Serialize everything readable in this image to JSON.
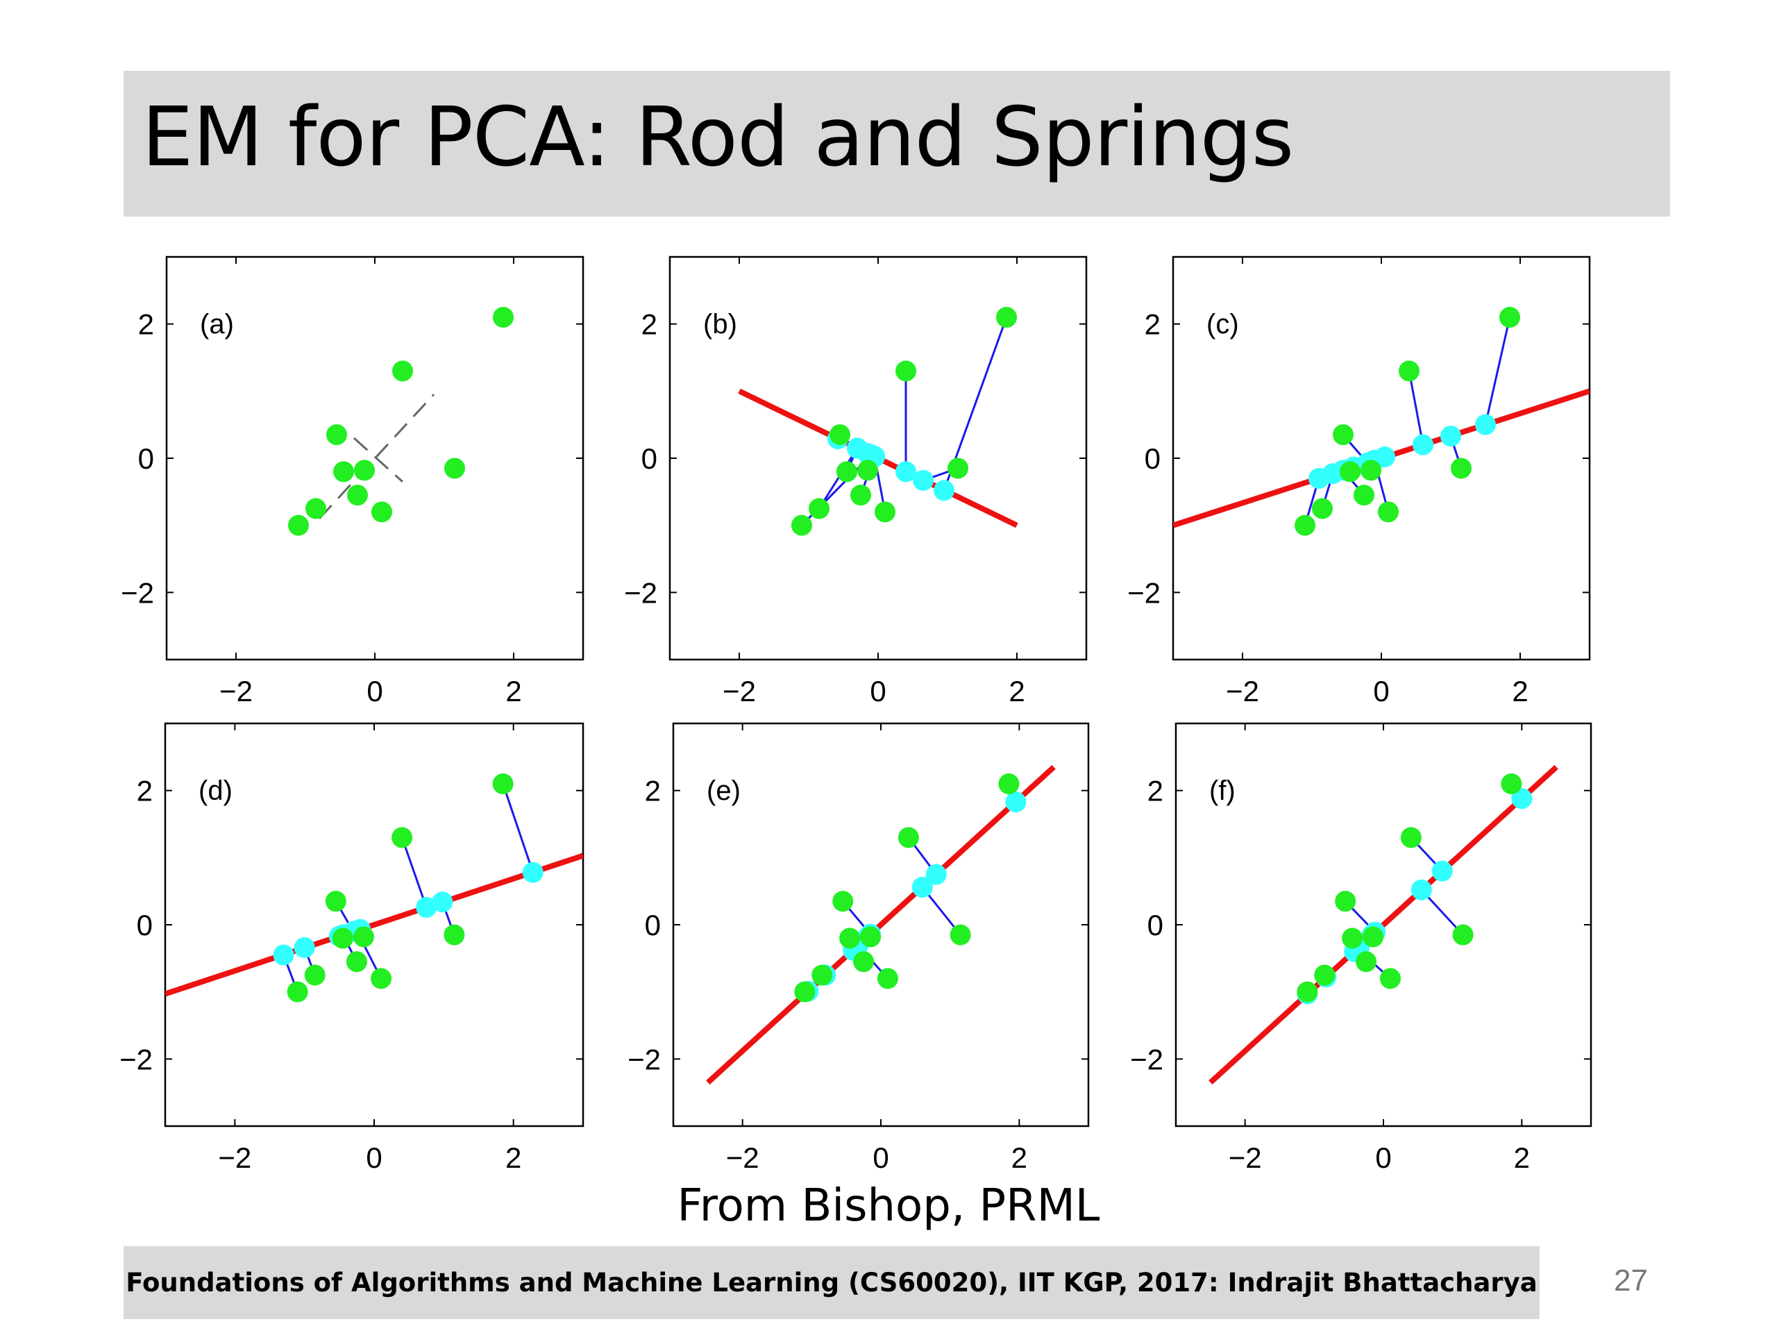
{
  "slide": {
    "title": "EM for PCA: Rod and Springs",
    "caption": "From Bishop, PRML",
    "footer": "Foundations of Algorithms and Machine Learning (CS60020), IIT KGP, 2017: Indrajit Bhattacharya",
    "page_number": "27"
  },
  "colors": {
    "data_point": "#22ee22",
    "projection": "#33ffff",
    "spring": "#1a1aee",
    "rod": "#ee1111",
    "dashed": "#666666"
  },
  "chart_data": [
    {
      "type": "scatter",
      "panel_label": "(a)",
      "xlim": [
        -3,
        3
      ],
      "ylim": [
        -3,
        3
      ],
      "xticks": [
        -2,
        0,
        2
      ],
      "yticks": [
        -2,
        0,
        2
      ],
      "points": [
        [
          1.85,
          2.1
        ],
        [
          0.4,
          1.3
        ],
        [
          -0.55,
          0.35
        ],
        [
          1.15,
          -0.15
        ],
        [
          -0.45,
          -0.2
        ],
        [
          -0.15,
          -0.18
        ],
        [
          -0.25,
          -0.55
        ],
        [
          0.1,
          -0.8
        ],
        [
          -0.85,
          -0.75
        ],
        [
          -1.1,
          -1.0
        ]
      ],
      "dashed_lines": [
        [
          [
            -0.8,
            -0.9
          ],
          [
            0.85,
            0.95
          ]
        ],
        [
          [
            -0.3,
            0.3
          ],
          [
            0.4,
            -0.35
          ]
        ]
      ]
    },
    {
      "type": "scatter",
      "panel_label": "(b)",
      "xlim": [
        -3,
        3
      ],
      "ylim": [
        -3,
        3
      ],
      "xticks": [
        -2,
        0,
        2
      ],
      "yticks": [
        -2,
        0,
        2
      ],
      "points": [
        [
          1.85,
          2.1
        ],
        [
          0.4,
          1.3
        ],
        [
          -0.55,
          0.35
        ],
        [
          1.15,
          -0.15
        ],
        [
          -0.45,
          -0.2
        ],
        [
          -0.15,
          -0.18
        ],
        [
          -0.25,
          -0.55
        ],
        [
          0.1,
          -0.8
        ],
        [
          -0.85,
          -0.75
        ],
        [
          -1.1,
          -1.0
        ]
      ],
      "rod": [
        [
          -2,
          1.0
        ],
        [
          2,
          -1.0
        ]
      ],
      "projections": [
        [
          0.95,
          -0.48
        ],
        [
          0.4,
          -0.2
        ],
        [
          -0.58,
          0.29
        ],
        [
          0.65,
          -0.33
        ],
        [
          -0.3,
          0.15
        ],
        [
          -0.15,
          0.07
        ],
        [
          -0.05,
          0.03
        ],
        [
          -0.05,
          0.02
        ],
        [
          -0.3,
          0.15
        ],
        [
          -0.1,
          0.05
        ]
      ]
    },
    {
      "type": "scatter",
      "panel_label": "(c)",
      "xlim": [
        -3,
        3
      ],
      "ylim": [
        -3,
        3
      ],
      "xticks": [
        -2,
        0,
        2
      ],
      "yticks": [
        -2,
        0,
        2
      ],
      "points": [
        [
          1.85,
          2.1
        ],
        [
          0.4,
          1.3
        ],
        [
          -0.55,
          0.35
        ],
        [
          1.15,
          -0.15
        ],
        [
          -0.45,
          -0.2
        ],
        [
          -0.15,
          -0.18
        ],
        [
          -0.25,
          -0.55
        ],
        [
          0.1,
          -0.8
        ],
        [
          -0.85,
          -0.75
        ],
        [
          -1.1,
          -1.0
        ]
      ],
      "rod": [
        [
          -3,
          -1.0
        ],
        [
          3,
          1.0
        ]
      ],
      "projections": [
        [
          1.5,
          0.5
        ],
        [
          0.6,
          0.2
        ],
        [
          -0.2,
          -0.07
        ],
        [
          1.0,
          0.33
        ],
        [
          -0.4,
          -0.13
        ],
        [
          0.05,
          0.02
        ],
        [
          -0.55,
          -0.18
        ],
        [
          -0.1,
          -0.03
        ],
        [
          -0.7,
          -0.23
        ],
        [
          -0.9,
          -0.3
        ]
      ]
    },
    {
      "type": "scatter",
      "panel_label": "(d)",
      "xlim": [
        -3,
        3
      ],
      "ylim": [
        -3,
        3
      ],
      "xticks": [
        -2,
        0,
        2
      ],
      "yticks": [
        -2,
        0,
        2
      ],
      "points": [
        [
          1.85,
          2.1
        ],
        [
          0.4,
          1.3
        ],
        [
          -0.55,
          0.35
        ],
        [
          1.15,
          -0.15
        ],
        [
          -0.45,
          -0.2
        ],
        [
          -0.15,
          -0.18
        ],
        [
          -0.25,
          -0.55
        ],
        [
          0.1,
          -0.8
        ],
        [
          -0.85,
          -0.75
        ],
        [
          -1.1,
          -1.0
        ]
      ],
      "rod": [
        [
          -3,
          -1.03
        ],
        [
          3,
          1.03
        ]
      ],
      "projections": [
        [
          2.28,
          0.78
        ],
        [
          0.75,
          0.26
        ],
        [
          -0.3,
          -0.1
        ],
        [
          0.98,
          0.34
        ],
        [
          -0.5,
          -0.17
        ],
        [
          -0.2,
          -0.07
        ],
        [
          -0.45,
          -0.15
        ],
        [
          -0.25,
          -0.09
        ],
        [
          -1.0,
          -0.34
        ],
        [
          -1.3,
          -0.45
        ]
      ]
    },
    {
      "type": "scatter",
      "panel_label": "(e)",
      "xlim": [
        -3,
        3
      ],
      "ylim": [
        -3,
        3
      ],
      "xticks": [
        -2,
        0,
        2
      ],
      "yticks": [
        -2,
        0,
        2
      ],
      "points": [
        [
          1.85,
          2.1
        ],
        [
          0.4,
          1.3
        ],
        [
          -0.55,
          0.35
        ],
        [
          1.15,
          -0.15
        ],
        [
          -0.45,
          -0.2
        ],
        [
          -0.15,
          -0.18
        ],
        [
          -0.25,
          -0.55
        ],
        [
          0.1,
          -0.8
        ],
        [
          -0.85,
          -0.75
        ],
        [
          -1.1,
          -1.0
        ]
      ],
      "rod": [
        [
          -2.5,
          -2.35
        ],
        [
          2.5,
          2.35
        ]
      ],
      "projections": [
        [
          1.95,
          1.83
        ],
        [
          0.8,
          0.75
        ],
        [
          -0.15,
          -0.14
        ],
        [
          0.6,
          0.56
        ],
        [
          -0.35,
          -0.33
        ],
        [
          -0.18,
          -0.17
        ],
        [
          -0.4,
          -0.38
        ],
        [
          -0.33,
          -0.31
        ],
        [
          -0.8,
          -0.75
        ],
        [
          -1.05,
          -0.99
        ]
      ]
    },
    {
      "type": "scatter",
      "panel_label": "(f)",
      "xlim": [
        -3,
        3
      ],
      "ylim": [
        -3,
        3
      ],
      "xticks": [
        -2,
        0,
        2
      ],
      "yticks": [
        -2,
        0,
        2
      ],
      "points": [
        [
          1.85,
          2.1
        ],
        [
          0.4,
          1.3
        ],
        [
          -0.55,
          0.35
        ],
        [
          1.15,
          -0.15
        ],
        [
          -0.45,
          -0.2
        ],
        [
          -0.15,
          -0.18
        ],
        [
          -0.25,
          -0.55
        ],
        [
          0.1,
          -0.8
        ],
        [
          -0.85,
          -0.75
        ],
        [
          -1.1,
          -1.0
        ]
      ],
      "rod": [
        [
          -2.5,
          -2.35
        ],
        [
          2.5,
          2.35
        ]
      ],
      "projections": [
        [
          2.0,
          1.88
        ],
        [
          0.85,
          0.8
        ],
        [
          -0.12,
          -0.11
        ],
        [
          0.55,
          0.52
        ],
        [
          -0.35,
          -0.33
        ],
        [
          -0.17,
          -0.16
        ],
        [
          -0.42,
          -0.4
        ],
        [
          -0.38,
          -0.36
        ],
        [
          -0.83,
          -0.78
        ],
        [
          -1.1,
          -1.03
        ]
      ]
    }
  ]
}
